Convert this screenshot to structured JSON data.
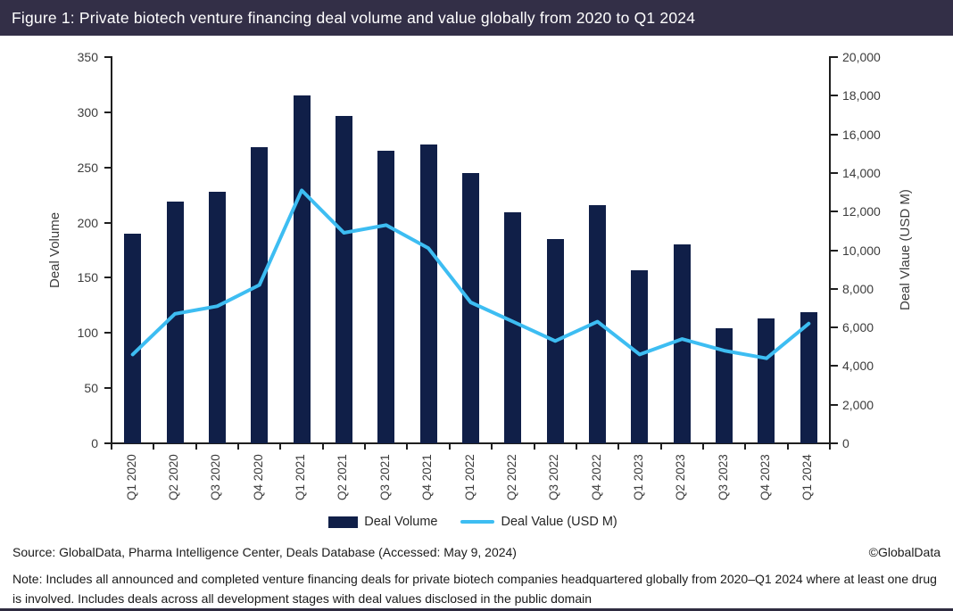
{
  "header": {
    "title": "Figure 1: Private biotech venture financing deal volume and value globally from 2020 to Q1 2024"
  },
  "chart_data": {
    "type": "bar+line combo",
    "categories": [
      "Q1 2020",
      "Q2 2020",
      "Q3 2020",
      "Q4 2020",
      "Q1 2021",
      "Q2 2021",
      "Q3 2021",
      "Q4 2021",
      "Q1 2022",
      "Q2 2022",
      "Q3 2022",
      "Q4 2022",
      "Q1 2023",
      "Q2 2023",
      "Q3 2023",
      "Q4 2023",
      "Q1 2024"
    ],
    "series": [
      {
        "name": "Deal Volume",
        "type": "bar",
        "axis": "left",
        "color": "#101f48",
        "values": [
          190,
          219,
          228,
          268,
          315,
          297,
          265,
          271,
          245,
          209,
          185,
          216,
          157,
          180,
          104,
          113,
          119
        ]
      },
      {
        "name": "Deal Value (USD M)",
        "type": "line",
        "axis": "right",
        "color": "#3dbdf2",
        "values": [
          4600,
          6700,
          7100,
          8200,
          13100,
          10900,
          11300,
          10100,
          7300,
          6300,
          5300,
          6300,
          4600,
          5400,
          4800,
          4400,
          6200
        ]
      }
    ],
    "left_axis": {
      "label": "Deal Volume",
      "min": 0,
      "max": 350,
      "step": 50
    },
    "right_axis": {
      "label": "Deal Vlaue (USD M)",
      "min": 0,
      "max": 20000,
      "step": 2000
    },
    "legend_position": "bottom",
    "grid": false
  },
  "legend": {
    "bar_label": "Deal Volume",
    "line_label": "Deal Value (USD M)"
  },
  "footer": {
    "source": "Source: GlobalData, Pharma Intelligence Center, Deals Database (Accessed: May 9, 2024)",
    "copyright": "©GlobalData",
    "note": "Note: Includes all announced and completed venture financing deals for private biotech companies headquartered globally from 2020–Q1 2024 where at least one drug is involved. Includes deals across all development stages with deal values disclosed in the public domain"
  }
}
